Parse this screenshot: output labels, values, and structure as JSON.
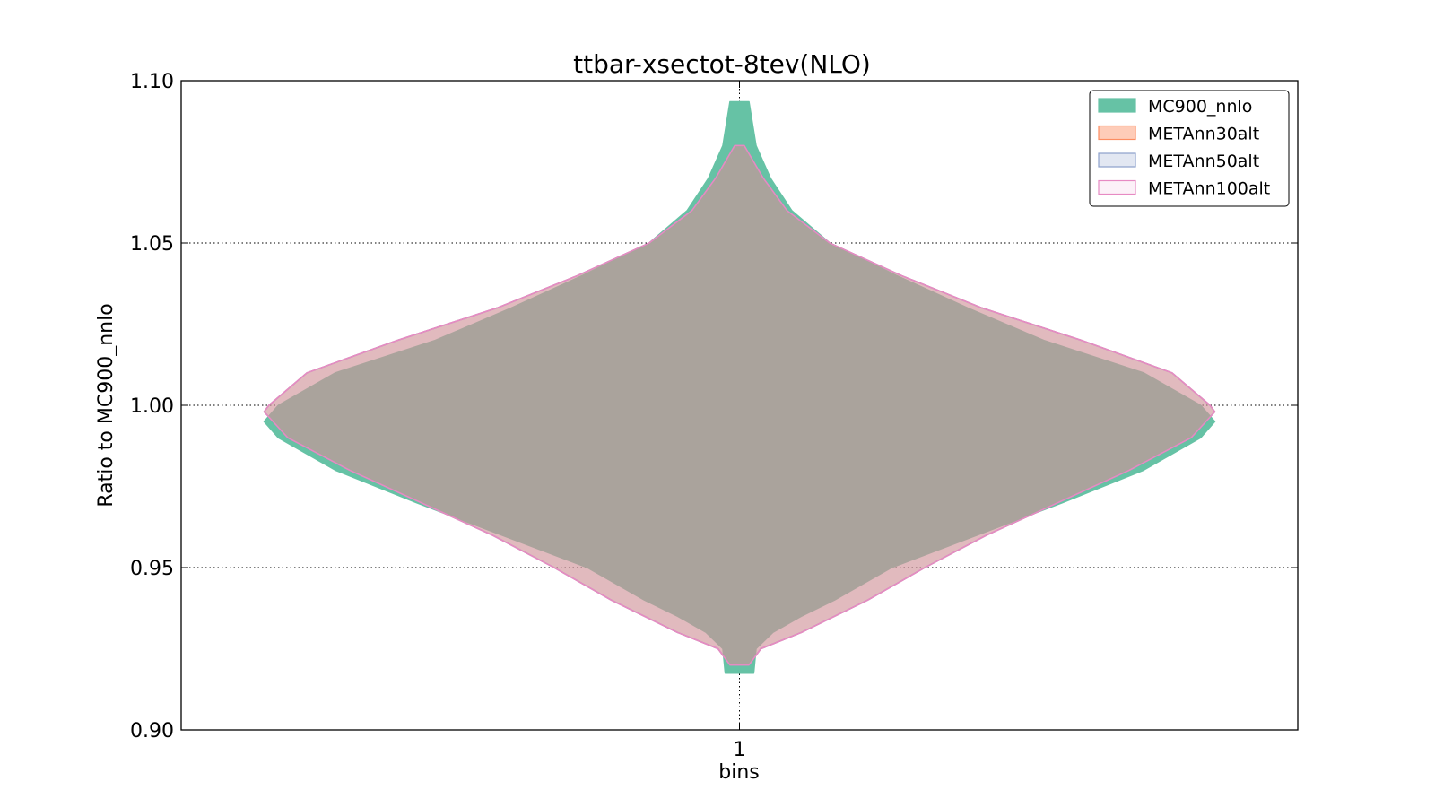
{
  "chart_data": {
    "type": "violin",
    "title": "ttbar-xsectot-8tev(NLO)",
    "xlabel": "bins",
    "ylabel": "Ratio to MC900_nnlo",
    "categories": [
      "1"
    ],
    "ylim": [
      0.9,
      1.1
    ],
    "yticks": [
      0.9,
      0.95,
      1.0,
      1.05,
      1.1
    ],
    "ytick_labels": [
      "0.90",
      "0.95",
      "1.00",
      "1.05",
      "1.10"
    ],
    "grid": true,
    "legend_position": "top-right",
    "series": [
      {
        "name": "MC900_nnlo",
        "fill": "#66c2a5",
        "edge": "#66c2a5",
        "opacity": 1.0,
        "filled_legend": true,
        "profile": [
          [
            0.9175,
            0.03
          ],
          [
            0.925,
            0.035
          ],
          [
            0.93,
            0.07
          ],
          [
            0.935,
            0.13
          ],
          [
            0.94,
            0.2
          ],
          [
            0.95,
            0.32
          ],
          [
            0.96,
            0.5
          ],
          [
            0.97,
            0.68
          ],
          [
            0.98,
            0.85
          ],
          [
            0.99,
            0.97
          ],
          [
            0.995,
            1.0
          ],
          [
            1.0,
            0.97
          ],
          [
            1.01,
            0.85
          ],
          [
            1.02,
            0.64
          ],
          [
            1.03,
            0.48
          ],
          [
            1.04,
            0.33
          ],
          [
            1.05,
            0.19
          ],
          [
            1.06,
            0.11
          ],
          [
            1.07,
            0.065
          ],
          [
            1.08,
            0.035
          ],
          [
            1.0935,
            0.02
          ]
        ]
      },
      {
        "name": "METAnn30alt",
        "fill": "#fc8d62",
        "edge": "#fc8d62",
        "opacity": 0.45,
        "filled_legend": false,
        "profile": [
          [
            0.92,
            0.02
          ],
          [
            0.925,
            0.045
          ],
          [
            0.93,
            0.13
          ],
          [
            0.935,
            0.2
          ],
          [
            0.94,
            0.27
          ],
          [
            0.95,
            0.39
          ],
          [
            0.96,
            0.52
          ],
          [
            0.97,
            0.67
          ],
          [
            0.98,
            0.82
          ],
          [
            0.99,
            0.95
          ],
          [
            0.998,
            1.0
          ],
          [
            1.0,
            0.99
          ],
          [
            1.01,
            0.91
          ],
          [
            1.02,
            0.72
          ],
          [
            1.03,
            0.51
          ],
          [
            1.04,
            0.34
          ],
          [
            1.05,
            0.19
          ],
          [
            1.06,
            0.1
          ],
          [
            1.07,
            0.05
          ],
          [
            1.08,
            0.01
          ]
        ]
      },
      {
        "name": "METAnn50alt",
        "fill": "#8da0cb",
        "edge": "#8da0cb",
        "opacity": 0.25,
        "filled_legend": false,
        "profile": [
          [
            0.92,
            0.02
          ],
          [
            0.925,
            0.045
          ],
          [
            0.93,
            0.13
          ],
          [
            0.935,
            0.2
          ],
          [
            0.94,
            0.27
          ],
          [
            0.95,
            0.39
          ],
          [
            0.96,
            0.52
          ],
          [
            0.97,
            0.67
          ],
          [
            0.98,
            0.82
          ],
          [
            0.99,
            0.95
          ],
          [
            0.998,
            1.0
          ],
          [
            1.0,
            0.99
          ],
          [
            1.01,
            0.91
          ],
          [
            1.02,
            0.72
          ],
          [
            1.03,
            0.51
          ],
          [
            1.04,
            0.34
          ],
          [
            1.05,
            0.19
          ],
          [
            1.06,
            0.1
          ],
          [
            1.07,
            0.05
          ],
          [
            1.08,
            0.01
          ]
        ]
      },
      {
        "name": "METAnn100alt",
        "fill": "#e78ac3",
        "edge": "#e78ac3",
        "opacity": 0.12,
        "filled_legend": false,
        "profile": [
          [
            0.92,
            0.02
          ],
          [
            0.925,
            0.045
          ],
          [
            0.93,
            0.13
          ],
          [
            0.935,
            0.2
          ],
          [
            0.94,
            0.27
          ],
          [
            0.95,
            0.39
          ],
          [
            0.96,
            0.52
          ],
          [
            0.97,
            0.67
          ],
          [
            0.98,
            0.82
          ],
          [
            0.99,
            0.95
          ],
          [
            0.998,
            1.0
          ],
          [
            1.0,
            0.99
          ],
          [
            1.01,
            0.91
          ],
          [
            1.02,
            0.72
          ],
          [
            1.03,
            0.51
          ],
          [
            1.04,
            0.34
          ],
          [
            1.05,
            0.19
          ],
          [
            1.06,
            0.1
          ],
          [
            1.07,
            0.05
          ],
          [
            1.08,
            0.01
          ]
        ]
      }
    ]
  }
}
